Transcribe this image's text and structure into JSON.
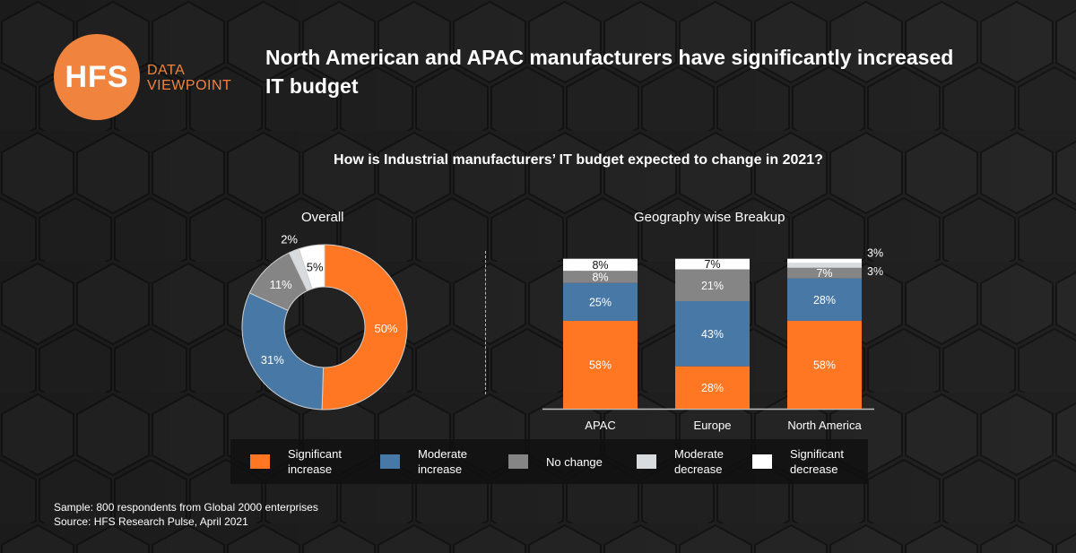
{
  "logo": {
    "mark": "HFS",
    "line1": "DATA",
    "line2": "VIEWPOINT",
    "color": "#f0843f"
  },
  "title": "North American and APAC manufacturers have significantly increased IT budget",
  "question": "How is Industrial manufacturers’ IT budget expected to change in 2021?",
  "colors": {
    "significant_increase": "#ff7722",
    "moderate_increase": "#4878a6",
    "no_change": "#858585",
    "moderate_decrease": "#d9dcdf",
    "significant_decrease": "#ffffff"
  },
  "legend": [
    {
      "label": "Significant increase",
      "key": "significant_increase"
    },
    {
      "label": "Moderate increase",
      "key": "moderate_increase"
    },
    {
      "label": "No change",
      "key": "no_change"
    },
    {
      "label": "Moderate decrease",
      "key": "moderate_decrease"
    },
    {
      "label": "Significant decrease",
      "key": "significant_decrease"
    }
  ],
  "footer": {
    "sample": "Sample: 800 respondents from Global 2000 enterprises",
    "source": "Source: HFS Research Pulse, April 2021"
  },
  "chart_data": [
    {
      "type": "pie",
      "title": "Overall",
      "donut": true,
      "categories": [
        "Significant increase",
        "Moderate increase",
        "No change",
        "Moderate decrease",
        "Significant decrease"
      ],
      "values": [
        50,
        31,
        11,
        2,
        5
      ],
      "labels": [
        "50%",
        "31%",
        "11%",
        "2%",
        "5%"
      ]
    },
    {
      "type": "bar",
      "stacked": true,
      "title": "Geography wise Breakup",
      "categories": [
        "APAC",
        "Europe",
        "North America"
      ],
      "ylim": [
        0,
        100
      ],
      "series": [
        {
          "name": "Significant increase",
          "values": [
            58,
            28,
            58
          ]
        },
        {
          "name": "Moderate increase",
          "values": [
            25,
            43,
            28
          ]
        },
        {
          "name": "No change",
          "values": [
            8,
            21,
            7
          ]
        },
        {
          "name": "Moderate decrease",
          "values": [
            0,
            0,
            3
          ]
        },
        {
          "name": "Significant decrease",
          "values": [
            8,
            7,
            3
          ]
        }
      ]
    }
  ]
}
